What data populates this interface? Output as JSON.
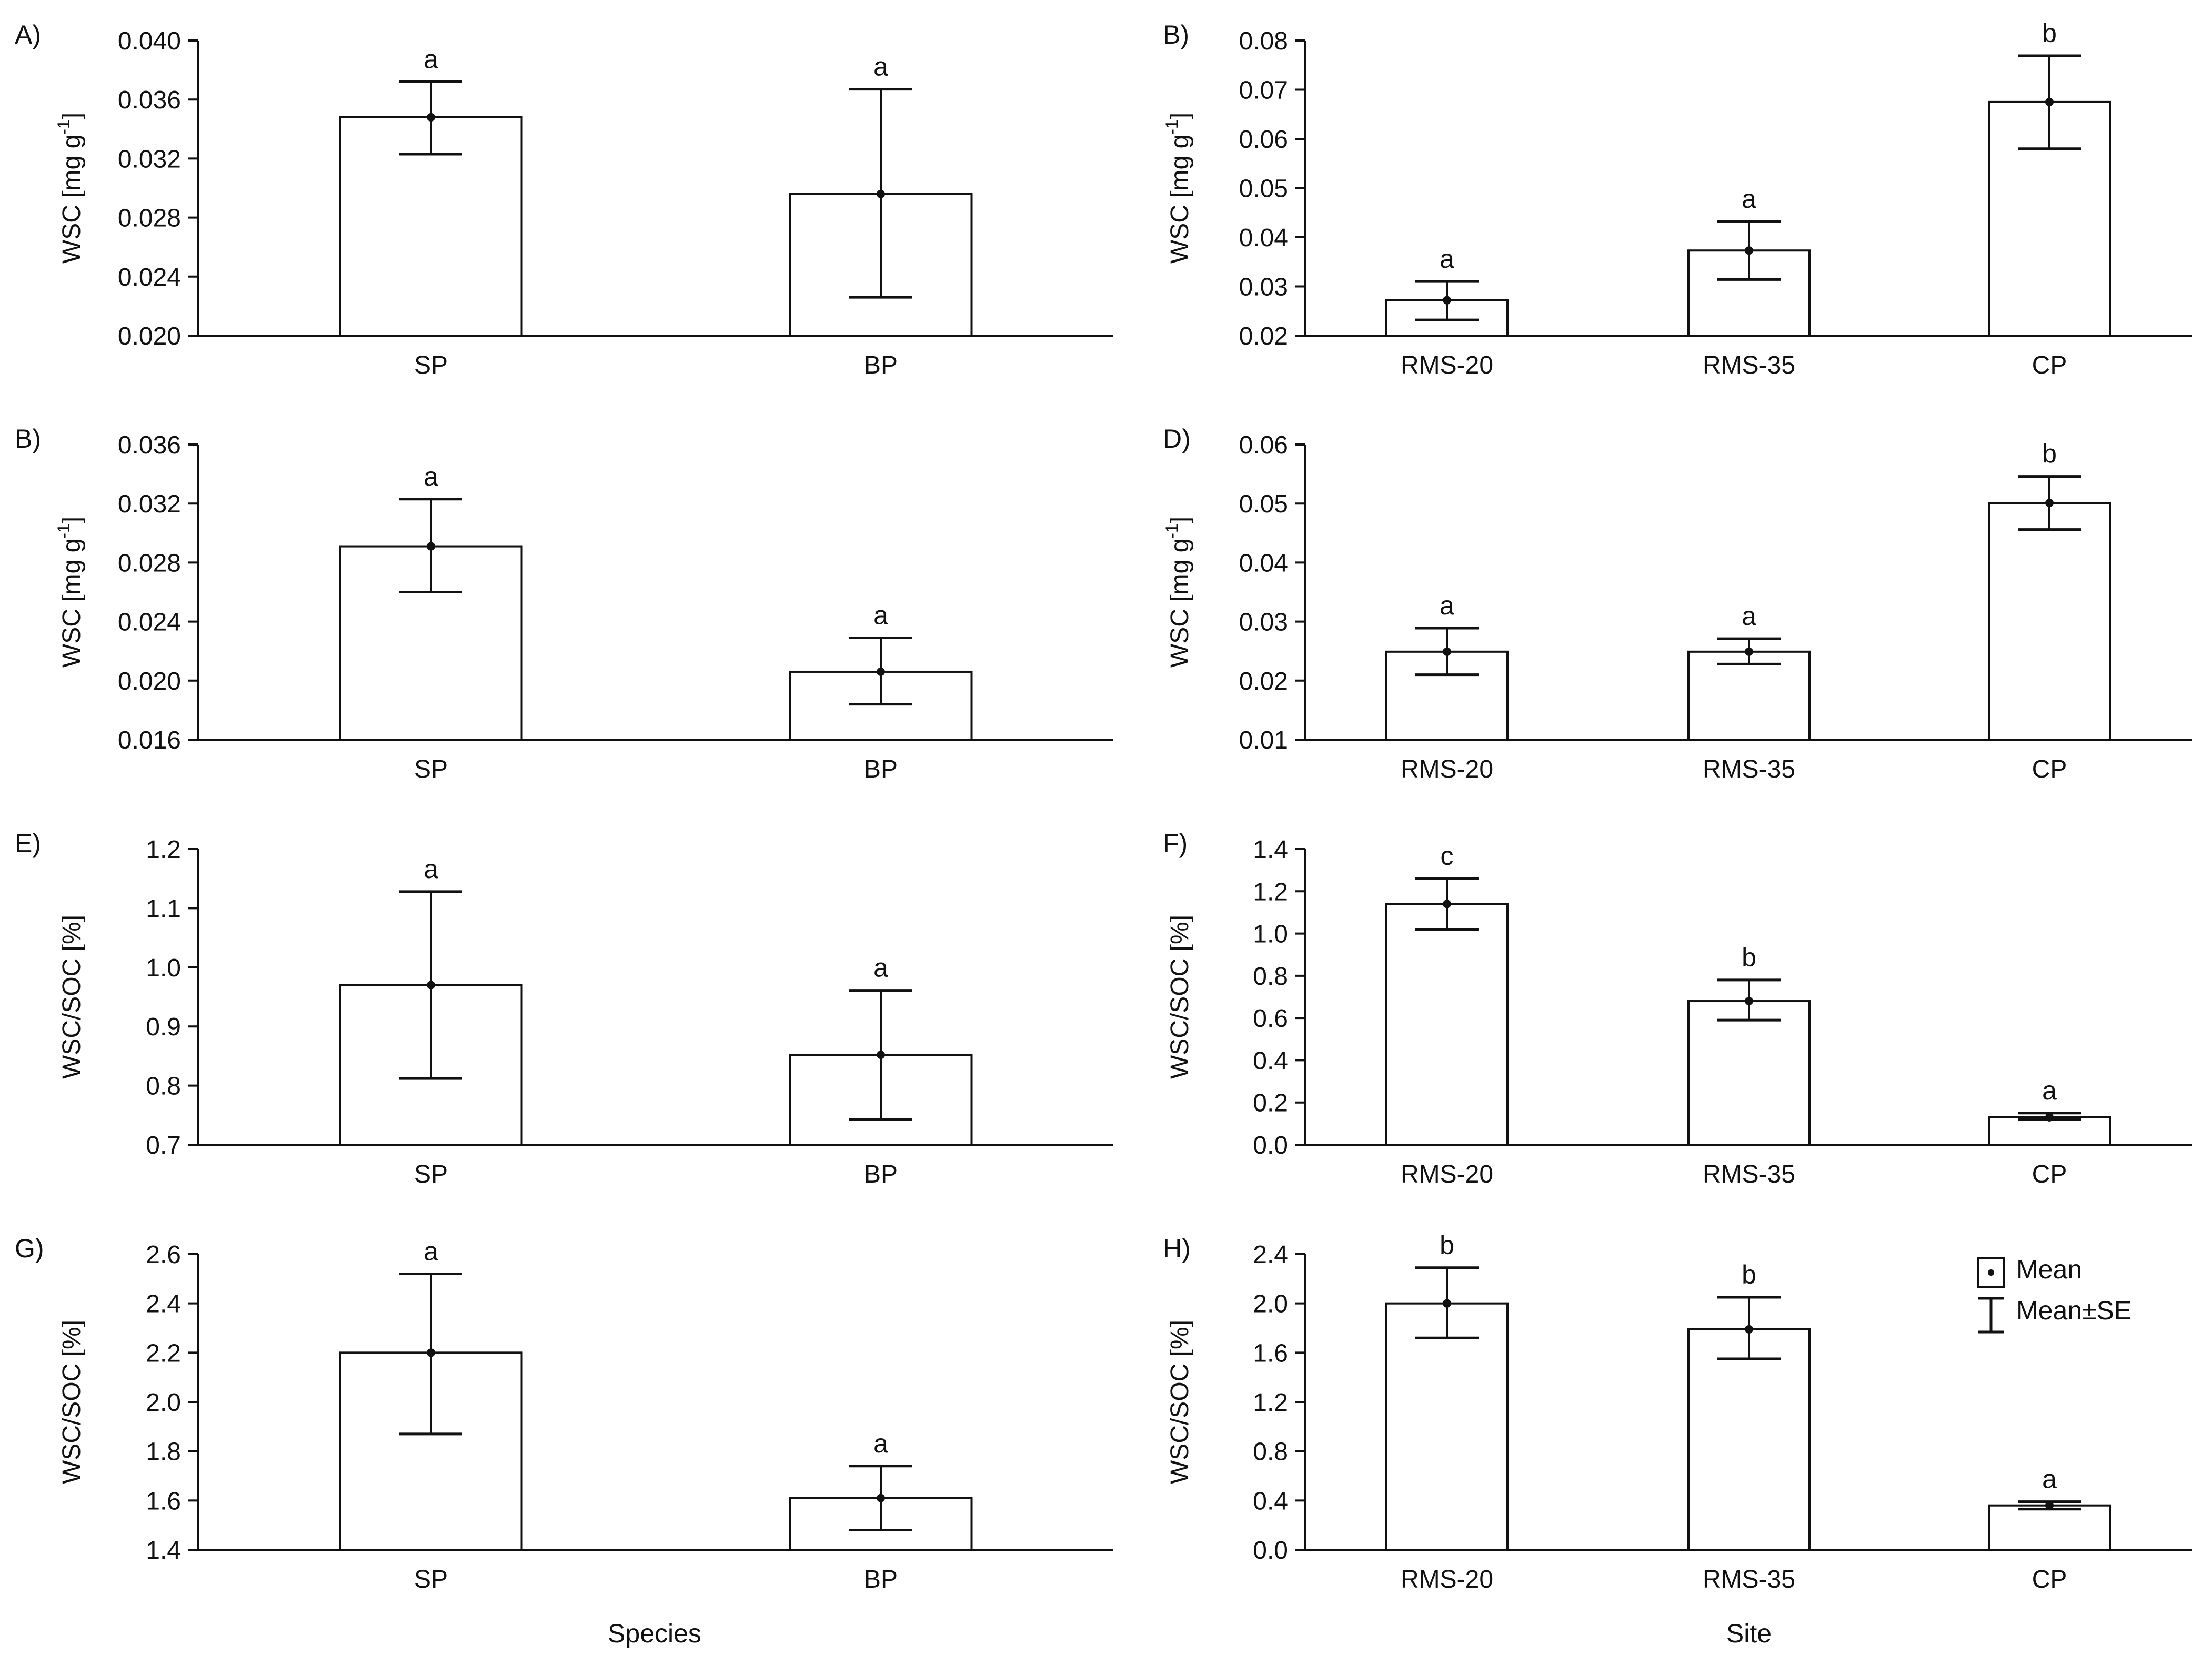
{
  "figure": {
    "x_labels": {
      "species": "Species",
      "site": "Site"
    },
    "legend": {
      "mean": "Mean",
      "mean_se": "Mean±SE"
    }
  },
  "chart_data": [
    {
      "type": "bar",
      "panel": "A)",
      "ylabel": "WSC [mg g-1]",
      "ylabel_main": "WSC [mg g",
      "ylabel_sup": "-1",
      "ylabel_end": "]",
      "categories": [
        "SP",
        "BP"
      ],
      "values": [
        0.0348,
        0.0296
      ],
      "se_low": [
        0.0323,
        0.0226
      ],
      "se_high": [
        0.0372,
        0.0367
      ],
      "letters": [
        "a",
        "a"
      ],
      "ylim": [
        0.02,
        0.04
      ],
      "yticks": [
        "0.020",
        "0.024",
        "0.028",
        "0.032",
        "0.036",
        "0.040"
      ]
    },
    {
      "type": "bar",
      "panel": "B)",
      "ylabel": "WSC [mg g-1]",
      "ylabel_main": "WSC [mg g",
      "ylabel_sup": "-1",
      "ylabel_end": "]",
      "categories": [
        "RMS-20",
        "RMS-35",
        "CP"
      ],
      "values": [
        0.0272,
        0.0373,
        0.0675
      ],
      "se_low": [
        0.0232,
        0.0314,
        0.058
      ],
      "se_high": [
        0.031,
        0.0432,
        0.0769
      ],
      "letters": [
        "a",
        "a",
        "b"
      ],
      "ylim": [
        0.02,
        0.08
      ],
      "yticks": [
        "0.02",
        "0.03",
        "0.04",
        "0.05",
        "0.06",
        "0.07",
        "0.08"
      ]
    },
    {
      "type": "bar",
      "panel": "B)",
      "ylabel": "WSC [mg g-1]",
      "ylabel_main": "WSC [mg g",
      "ylabel_sup": "-1",
      "ylabel_end": "]",
      "categories": [
        "SP",
        "BP"
      ],
      "values": [
        0.0291,
        0.0206
      ],
      "se_low": [
        0.026,
        0.0184
      ],
      "se_high": [
        0.0323,
        0.0229
      ],
      "letters": [
        "a",
        "a"
      ],
      "ylim": [
        0.016,
        0.036
      ],
      "yticks": [
        "0.016",
        "0.020",
        "0.024",
        "0.028",
        "0.032",
        "0.036"
      ]
    },
    {
      "type": "bar",
      "panel": "D)",
      "ylabel": "WSC [mg g-1]",
      "ylabel_main": "WSC [mg g",
      "ylabel_sup": "-1",
      "ylabel_end": "]",
      "categories": [
        "RMS-20",
        "RMS-35",
        "CP"
      ],
      "values": [
        0.0249,
        0.0249,
        0.0501
      ],
      "se_low": [
        0.021,
        0.0228,
        0.0456
      ],
      "se_high": [
        0.0289,
        0.0271,
        0.0546
      ],
      "letters": [
        "a",
        "a",
        "b"
      ],
      "ylim": [
        0.01,
        0.06
      ],
      "yticks": [
        "0.01",
        "0.02",
        "0.03",
        "0.04",
        "0.05",
        "0.06"
      ]
    },
    {
      "type": "bar",
      "panel": "E)",
      "ylabel": "WSC/SOC [%]",
      "ylabel_main": "WSC/SOC [%]",
      "ylabel_sup": "",
      "ylabel_end": "",
      "categories": [
        "SP",
        "BP"
      ],
      "values": [
        0.97,
        0.852
      ],
      "se_low": [
        0.812,
        0.743
      ],
      "se_high": [
        1.128,
        0.961
      ],
      "letters": [
        "a",
        "a"
      ],
      "ylim": [
        0.7,
        1.2
      ],
      "yticks": [
        "0.7",
        "0.8",
        "0.9",
        "1.0",
        "1.1",
        "1.2"
      ]
    },
    {
      "type": "bar",
      "panel": "F)",
      "ylabel": "WSC/SOC [%]",
      "ylabel_main": "WSC/SOC [%]",
      "ylabel_sup": "",
      "ylabel_end": "",
      "categories": [
        "RMS-20",
        "RMS-35",
        "CP"
      ],
      "values": [
        1.14,
        0.68,
        0.13
      ],
      "se_low": [
        1.02,
        0.59,
        0.12
      ],
      "se_high": [
        1.26,
        0.78,
        0.15
      ],
      "letters": [
        "c",
        "b",
        "a"
      ],
      "ylim": [
        0.0,
        1.4
      ],
      "yticks": [
        "0.0",
        "0.2",
        "0.4",
        "0.6",
        "0.8",
        "1.0",
        "1.2",
        "1.4"
      ]
    },
    {
      "type": "bar",
      "panel": "G)",
      "ylabel": "WSC/SOC [%]",
      "ylabel_main": "WSC/SOC [%]",
      "ylabel_sup": "",
      "ylabel_end": "",
      "categories": [
        "SP",
        "BP"
      ],
      "values": [
        2.2,
        1.61
      ],
      "se_low": [
        1.87,
        1.48
      ],
      "se_high": [
        2.52,
        1.74
      ],
      "letters": [
        "a",
        "a"
      ],
      "ylim": [
        1.4,
        2.6
      ],
      "yticks": [
        "1.4",
        "1.6",
        "1.8",
        "2.0",
        "2.2",
        "2.4",
        "2.6"
      ]
    },
    {
      "type": "bar",
      "panel": "H)",
      "ylabel": "WSC/SOC [%]",
      "ylabel_main": "WSC/SOC [%]",
      "ylabel_sup": "",
      "ylabel_end": "",
      "categories": [
        "RMS-20",
        "RMS-35",
        "CP"
      ],
      "values": [
        2.0,
        1.79,
        0.36
      ],
      "se_low": [
        1.72,
        1.55,
        0.33
      ],
      "se_high": [
        2.29,
        2.05,
        0.39
      ],
      "letters": [
        "b",
        "b",
        "a"
      ],
      "ylim": [
        0.0,
        2.4
      ],
      "yticks": [
        "0.0",
        "0.4",
        "0.8",
        "1.2",
        "1.6",
        "2.0",
        "2.4"
      ]
    }
  ]
}
